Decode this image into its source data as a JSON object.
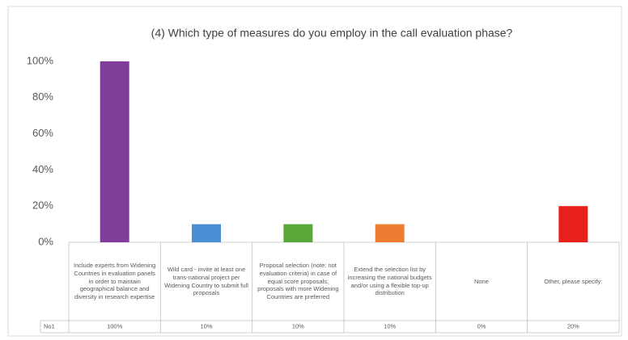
{
  "chart_data": {
    "type": "bar",
    "title": "(4) Which type of measures do you employ in the call evaluation phase?",
    "categories": [
      "Include experts from Widening Countries in evaluation panels in order to maintain geographical balance and diversity in research expertise",
      "Wild card - invite at least one trans-national project per Widening Country to submit full proposals",
      "Proposal selection (note: not evaluation criteria) in case of equal score proposals; proposals with more Widening Countries are preferred",
      "Extend the selection list by increasing the national budgets and/or using a flexible top-up distribution",
      "None",
      "Other, please specify:"
    ],
    "series": [
      {
        "name": "No1",
        "colors": [
          "#7f3f98",
          "#4a8fd6",
          "#5aa83a",
          "#ed7d31",
          null,
          "#e8201c"
        ],
        "values": [
          100,
          10,
          10,
          10,
          0,
          20
        ],
        "value_labels": [
          "100%",
          "10%",
          "10%",
          "10%",
          "0%",
          "20%"
        ]
      }
    ],
    "ylim": [
      0,
      100
    ],
    "yticks": [
      {
        "value": 0,
        "label": "0%"
      },
      {
        "value": 20,
        "label": "20%"
      },
      {
        "value": 40,
        "label": "40%"
      },
      {
        "value": 60,
        "label": "60%"
      },
      {
        "value": 80,
        "label": "80%"
      },
      {
        "value": 100,
        "label": "100%"
      }
    ],
    "grid": false
  }
}
